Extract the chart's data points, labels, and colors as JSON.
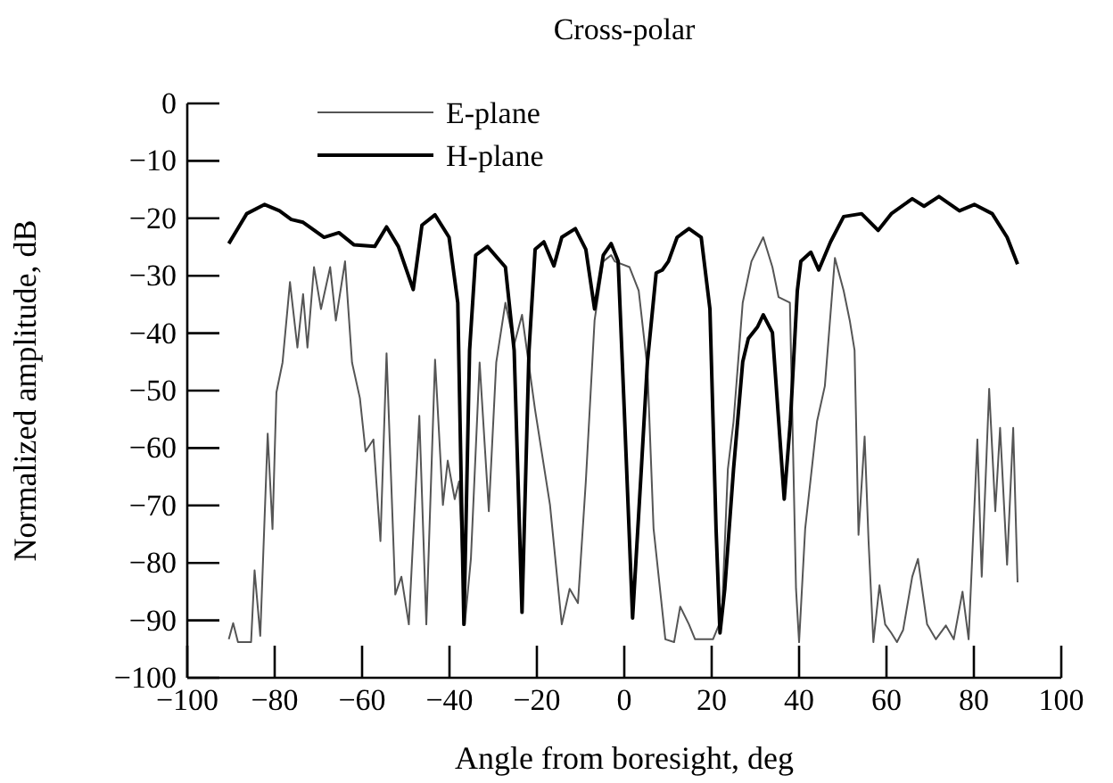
{
  "chart_data": {
    "type": "line",
    "title": "Cross-polar",
    "xlabel": "Angle from boresight, deg",
    "ylabel": "Normalized amplitude, dB",
    "xlim": [
      -100,
      100
    ],
    "xticks": [
      -100,
      -80,
      -60,
      -40,
      -20,
      0,
      20,
      40,
      60,
      80,
      100
    ],
    "ylim": [
      -100,
      0
    ],
    "yticks": [
      0,
      -10,
      -20,
      -30,
      -40,
      -50,
      -60,
      -70,
      -80,
      -90,
      -100
    ],
    "grid": false,
    "legend": "top left",
    "marker": "none",
    "series": [
      {
        "name": "E-plane",
        "color": "#555555",
        "line_style": "solid",
        "x": [
          -90.5,
          -89.5,
          -88.4,
          -85.4,
          -84.6,
          -83.3,
          -81.6,
          -80.5,
          -79.6,
          -78.2,
          -76.5,
          -74.8,
          -73.5,
          -72.5,
          -71,
          -69.4,
          -67.3,
          -66,
          -63.9,
          -62.3,
          -60.5,
          -59.2,
          -57.4,
          -55.8,
          -54.4,
          -52.4,
          -51,
          -49.3,
          -46.9,
          -45.3,
          -43.3,
          -41.5,
          -40.4,
          -38.8,
          -37.8,
          -36.5,
          -35.1,
          -33.1,
          -31,
          -29.3,
          -27.2,
          -25.2,
          -23.4,
          -20.4,
          -17,
          -14.3,
          -12.5,
          -10.6,
          -8.8,
          -6.8,
          -4.8,
          -3,
          -2.2,
          1.2,
          3.3,
          5.3,
          6.7,
          9.4,
          11.4,
          12.8,
          14.8,
          16.2,
          20.3,
          22.3,
          23.7,
          25,
          27.1,
          29.1,
          31.8,
          33.9,
          35.3,
          37.9,
          39.3,
          40,
          41.4,
          44.1,
          45.9,
          48.2,
          50.2,
          51.6,
          52.7,
          53.6,
          55,
          55.9,
          57,
          58.4,
          59.7,
          61.1,
          62.4,
          63.8,
          65.9,
          67.2,
          69.3,
          71.3,
          73.6,
          75.4,
          77.4,
          78.8,
          80.8,
          81.8,
          83.5,
          84.9,
          86,
          87.6,
          89,
          90
        ],
        "values": [
          -93.3,
          -90.5,
          -93.8,
          -93.8,
          -81.3,
          -92.7,
          -57.5,
          -74.1,
          -50.3,
          -45.1,
          -31.1,
          -42.5,
          -33.2,
          -42.5,
          -28.5,
          -35.8,
          -28.5,
          -37.8,
          -27.5,
          -45.1,
          -51.3,
          -60.6,
          -58.5,
          -76.2,
          -43.5,
          -85.5,
          -82.4,
          -90.7,
          -54.4,
          -90.7,
          -44.6,
          -69.9,
          -62.2,
          -68.9,
          -65.8,
          -90.7,
          -79.3,
          -45.1,
          -71,
          -45.1,
          -34.7,
          -42,
          -36.8,
          -53.4,
          -69.9,
          -90.7,
          -84.5,
          -87,
          -65.8,
          -37.8,
          -27.5,
          -26.4,
          -27.5,
          -28.5,
          -32.6,
          -46.1,
          -74,
          -93.3,
          -93.8,
          -87.6,
          -90.7,
          -93.3,
          -93.3,
          -89.6,
          -63.7,
          -55.4,
          -34.7,
          -27.5,
          -23.3,
          -28.5,
          -33.7,
          -34.7,
          -84.5,
          -93.8,
          -74,
          -55.4,
          -49.2,
          -26.9,
          -32.6,
          -37.8,
          -43,
          -75.1,
          -58,
          -76.2,
          -93.8,
          -83.9,
          -90.7,
          -92.2,
          -93.8,
          -91.7,
          -82.4,
          -79.3,
          -90.7,
          -93.3,
          -90.9,
          -93.3,
          -85,
          -93.3,
          -58.5,
          -82.4,
          -49.7,
          -71,
          -56.5,
          -80.3,
          -56.5,
          -83.4
        ]
      },
      {
        "name": "H-plane",
        "color": "#000000",
        "line_style": "solid",
        "x": [
          -90.5,
          -86.4,
          -82.3,
          -78.9,
          -76.2,
          -73.5,
          -68.7,
          -65.3,
          -61.9,
          -57.1,
          -54.4,
          -51.7,
          -48.3,
          -46.3,
          -43.3,
          -40.1,
          -38.1,
          -36.7,
          -35.4,
          -34,
          -31.3,
          -27.2,
          -25.2,
          -23.4,
          -21.8,
          -20.4,
          -18.4,
          -16.1,
          -14.3,
          -11.2,
          -8.8,
          -6.8,
          -4.8,
          -3,
          -1.4,
          0,
          1.9,
          3.9,
          5.3,
          7.3,
          8.7,
          10.1,
          12.1,
          14.8,
          17.6,
          19.6,
          21,
          21.9,
          23,
          25,
          27.1,
          28.4,
          30.5,
          31.8,
          33.9,
          36.6,
          38,
          39.6,
          40.4,
          42.7,
          44.5,
          47.2,
          50.2,
          54.3,
          58.1,
          61.1,
          65.9,
          68.6,
          72,
          76.7,
          80.1,
          84.2,
          87.6,
          90
        ],
        "values": [
          -24.4,
          -19.2,
          -17.6,
          -18.7,
          -20.2,
          -20.7,
          -23.3,
          -22.5,
          -24.6,
          -24.9,
          -21.5,
          -24.9,
          -32.4,
          -21.2,
          -19.4,
          -23.3,
          -34.7,
          -90.7,
          -43,
          -26.4,
          -24.9,
          -28.5,
          -43,
          -88.6,
          -43,
          -25.4,
          -24.1,
          -28.3,
          -23.3,
          -21.8,
          -25.4,
          -35.8,
          -26.4,
          -24.4,
          -27.5,
          -53.4,
          -89.6,
          -63.7,
          -45,
          -29.5,
          -29,
          -27.5,
          -23.3,
          -21.8,
          -23.3,
          -35.8,
          -74,
          -92.2,
          -84.5,
          -63.7,
          -45,
          -40.9,
          -38.9,
          -36.8,
          -39.9,
          -68.9,
          -55.4,
          -32.6,
          -27.5,
          -25.9,
          -29,
          -24.1,
          -19.7,
          -19.2,
          -22.1,
          -19.2,
          -16.6,
          -17.9,
          -16.2,
          -18.7,
          -17.6,
          -19.2,
          -23.3,
          -28
        ]
      }
    ]
  }
}
